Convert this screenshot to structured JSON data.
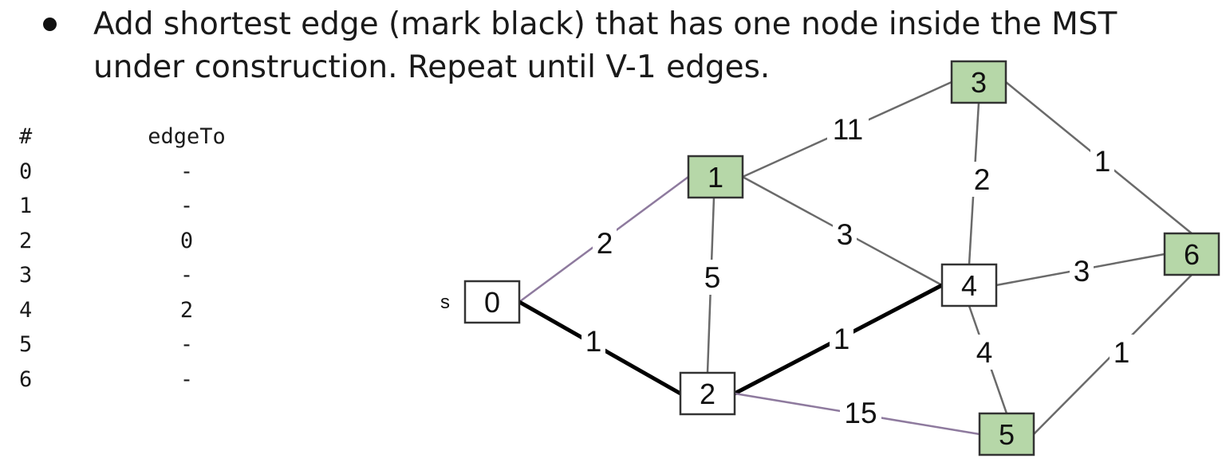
{
  "instruction": {
    "text": "Add shortest edge (mark black) that has one node inside the MST under construction. Repeat until V-1 edges."
  },
  "table": {
    "headers": [
      "#",
      "edgeTo"
    ],
    "rows": [
      [
        "0",
        "-"
      ],
      [
        "1",
        "-"
      ],
      [
        "2",
        "0"
      ],
      [
        "3",
        "-"
      ],
      [
        "4",
        "2"
      ],
      [
        "5",
        "-"
      ],
      [
        "6",
        "-"
      ]
    ]
  },
  "graph": {
    "source_label": "s",
    "colors": {
      "in_tree_fill": "#ffffff",
      "fringe_fill": "#b6d7a8",
      "tree_edge": "#000000",
      "crossing_edge": "#8e7a9e",
      "other_edge": "#6a6a6a"
    },
    "nodes": [
      {
        "id": "0",
        "status": "tree"
      },
      {
        "id": "1",
        "status": "fringe"
      },
      {
        "id": "2",
        "status": "tree"
      },
      {
        "id": "3",
        "status": "fringe"
      },
      {
        "id": "4",
        "status": "tree"
      },
      {
        "id": "5",
        "status": "fringe"
      },
      {
        "id": "6",
        "status": "fringe"
      }
    ],
    "edges": [
      {
        "from": "0",
        "to": "1",
        "weight": "2",
        "state": "crossing"
      },
      {
        "from": "0",
        "to": "2",
        "weight": "1",
        "state": "tree"
      },
      {
        "from": "1",
        "to": "2",
        "weight": "5",
        "state": "other"
      },
      {
        "from": "1",
        "to": "3",
        "weight": "11",
        "state": "other"
      },
      {
        "from": "1",
        "to": "4",
        "weight": "3",
        "state": "other"
      },
      {
        "from": "2",
        "to": "4",
        "weight": "1",
        "state": "tree"
      },
      {
        "from": "2",
        "to": "5",
        "weight": "15",
        "state": "crossing"
      },
      {
        "from": "3",
        "to": "4",
        "weight": "2",
        "state": "other"
      },
      {
        "from": "3",
        "to": "6",
        "weight": "1",
        "state": "other"
      },
      {
        "from": "4",
        "to": "6",
        "weight": "3",
        "state": "other"
      },
      {
        "from": "4",
        "to": "5",
        "weight": "4",
        "state": "other"
      },
      {
        "from": "5",
        "to": "6",
        "weight": "1",
        "state": "other"
      }
    ]
  }
}
